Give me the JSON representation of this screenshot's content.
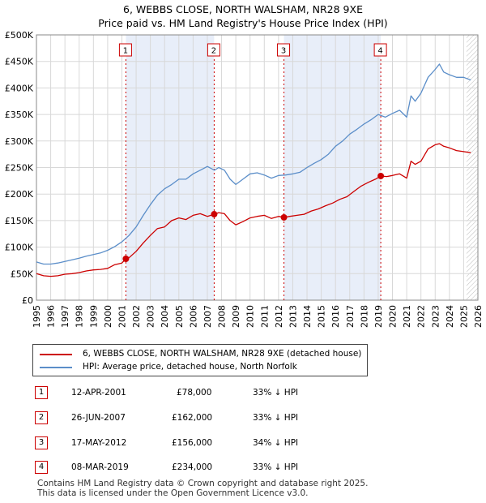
{
  "chart_data": {
    "type": "line",
    "title": "6, WEBBS CLOSE, NORTH WALSHAM, NR28 9XE",
    "subtitle": "Price paid vs. HM Land Registry's House Price Index (HPI)",
    "xlabel": "",
    "ylabel": "",
    "xlim": [
      1995,
      2026
    ],
    "ylim": [
      0,
      500000
    ],
    "y_ticks": [
      {
        "value": 0,
        "label": "£0"
      },
      {
        "value": 50000,
        "label": "£50K"
      },
      {
        "value": 100000,
        "label": "£100K"
      },
      {
        "value": 150000,
        "label": "£150K"
      },
      {
        "value": 200000,
        "label": "£200K"
      },
      {
        "value": 250000,
        "label": "£250K"
      },
      {
        "value": 300000,
        "label": "£300K"
      },
      {
        "value": 350000,
        "label": "£350K"
      },
      {
        "value": 400000,
        "label": "£400K"
      },
      {
        "value": 450000,
        "label": "£450K"
      },
      {
        "value": 500000,
        "label": "£500K"
      }
    ],
    "x_ticks": [
      "1995",
      "1996",
      "1997",
      "1998",
      "1999",
      "2000",
      "2001",
      "2002",
      "2003",
      "2004",
      "2005",
      "2006",
      "2007",
      "2008",
      "2009",
      "2010",
      "2011",
      "2012",
      "2013",
      "2014",
      "2015",
      "2016",
      "2017",
      "2018",
      "2019",
      "2020",
      "2021",
      "2022",
      "2023",
      "2024",
      "2025",
      "2026"
    ],
    "grid": true,
    "shaded_periods": [
      [
        2001.28,
        2007.48
      ],
      [
        2012.38,
        2019.18
      ]
    ],
    "hatched_after": 2025.2,
    "series": [
      {
        "name": "6, WEBBS CLOSE, NORTH WALSHAM, NR28 9XE (detached house)",
        "color": "#cc0000",
        "x": [
          1995.0,
          1995.5,
          1996.0,
          1996.5,
          1997.0,
          1997.5,
          1998.0,
          1998.5,
          1999.0,
          1999.5,
          2000.0,
          2000.5,
          2001.0,
          2001.28,
          2001.5,
          2002.0,
          2002.5,
          2003.0,
          2003.5,
          2004.0,
          2004.5,
          2005.0,
          2005.5,
          2006.0,
          2006.5,
          2007.0,
          2007.48,
          2007.8,
          2008.2,
          2008.6,
          2009.0,
          2009.5,
          2010.0,
          2010.5,
          2011.0,
          2011.5,
          2012.0,
          2012.38,
          2012.8,
          2013.3,
          2013.8,
          2014.3,
          2014.8,
          2015.3,
          2015.8,
          2016.3,
          2016.8,
          2017.3,
          2017.8,
          2018.3,
          2018.8,
          2019.18,
          2019.6,
          2020.0,
          2020.5,
          2021.0,
          2021.3,
          2021.6,
          2022.0,
          2022.5,
          2023.0,
          2023.3,
          2023.6,
          2024.0,
          2024.5,
          2025.0,
          2025.5
        ],
        "values": [
          50000,
          46000,
          45000,
          46000,
          49000,
          50000,
          52000,
          55000,
          57000,
          58000,
          60000,
          67000,
          70000,
          78000,
          80000,
          92000,
          108000,
          122000,
          135000,
          138000,
          150000,
          155000,
          152000,
          160000,
          163000,
          158000,
          162000,
          165000,
          163000,
          150000,
          142000,
          148000,
          155000,
          158000,
          160000,
          154000,
          158000,
          156000,
          158000,
          160000,
          162000,
          168000,
          172000,
          178000,
          183000,
          190000,
          195000,
          205000,
          215000,
          222000,
          228000,
          234000,
          233000,
          235000,
          238000,
          230000,
          262000,
          256000,
          262000,
          285000,
          293000,
          295000,
          290000,
          287000,
          282000,
          280000,
          278000
        ]
      },
      {
        "name": "HPI: Average price, detached house, North Norfolk",
        "color": "#5b8ec9",
        "x": [
          1995.0,
          1995.5,
          1996.0,
          1996.5,
          1997.0,
          1997.5,
          1998.0,
          1998.5,
          1999.0,
          1999.5,
          2000.0,
          2000.5,
          2001.0,
          2001.5,
          2002.0,
          2002.5,
          2003.0,
          2003.5,
          2004.0,
          2004.5,
          2005.0,
          2005.5,
          2006.0,
          2006.5,
          2007.0,
          2007.5,
          2007.8,
          2008.2,
          2008.6,
          2009.0,
          2009.5,
          2010.0,
          2010.5,
          2011.0,
          2011.5,
          2012.0,
          2012.5,
          2013.0,
          2013.5,
          2014.0,
          2014.5,
          2015.0,
          2015.5,
          2016.0,
          2016.5,
          2017.0,
          2017.5,
          2018.0,
          2018.5,
          2019.0,
          2019.5,
          2020.0,
          2020.5,
          2021.0,
          2021.3,
          2021.6,
          2022.0,
          2022.5,
          2023.0,
          2023.3,
          2023.6,
          2024.0,
          2024.5,
          2025.0,
          2025.5
        ],
        "values": [
          72000,
          68000,
          68000,
          70000,
          73000,
          76000,
          79000,
          83000,
          86000,
          89000,
          94000,
          101000,
          110000,
          122000,
          138000,
          160000,
          180000,
          198000,
          210000,
          218000,
          228000,
          228000,
          238000,
          245000,
          252000,
          245000,
          250000,
          245000,
          228000,
          218000,
          228000,
          238000,
          240000,
          236000,
          230000,
          235000,
          236000,
          238000,
          241000,
          250000,
          258000,
          265000,
          275000,
          290000,
          300000,
          313000,
          322000,
          332000,
          340000,
          350000,
          345000,
          352000,
          358000,
          345000,
          385000,
          375000,
          390000,
          420000,
          435000,
          445000,
          430000,
          425000,
          420000,
          420000,
          415000
        ]
      }
    ],
    "markers": [
      {
        "label": "1",
        "x": 2001.28,
        "y": 78000
      },
      {
        "label": "2",
        "x": 2007.48,
        "y": 162000
      },
      {
        "label": "3",
        "x": 2012.38,
        "y": 156000
      },
      {
        "label": "4",
        "x": 2019.18,
        "y": 234000
      }
    ]
  },
  "legend": {
    "property_label": "6, WEBBS CLOSE, NORTH WALSHAM, NR28 9XE (detached house)",
    "hpi_label": "HPI: Average price, detached house, North Norfolk"
  },
  "transactions": [
    {
      "num": "1",
      "date": "12-APR-2001",
      "price": "£78,000",
      "delta": "33% ↓ HPI"
    },
    {
      "num": "2",
      "date": "26-JUN-2007",
      "price": "£162,000",
      "delta": "33% ↓ HPI"
    },
    {
      "num": "3",
      "date": "17-MAY-2012",
      "price": "£156,000",
      "delta": "34% ↓ HPI"
    },
    {
      "num": "4",
      "date": "08-MAR-2019",
      "price": "£234,000",
      "delta": "33% ↓ HPI"
    }
  ],
  "footer": {
    "line1": "Contains HM Land Registry data © Crown copyright and database right 2025.",
    "line2": "This data is licensed under the Open Government Licence v3.0."
  },
  "colors": {
    "property": "#cc0000",
    "hpi": "#5b8ec9",
    "shade": "#e8eef9",
    "grid": "#d8d8d8"
  }
}
